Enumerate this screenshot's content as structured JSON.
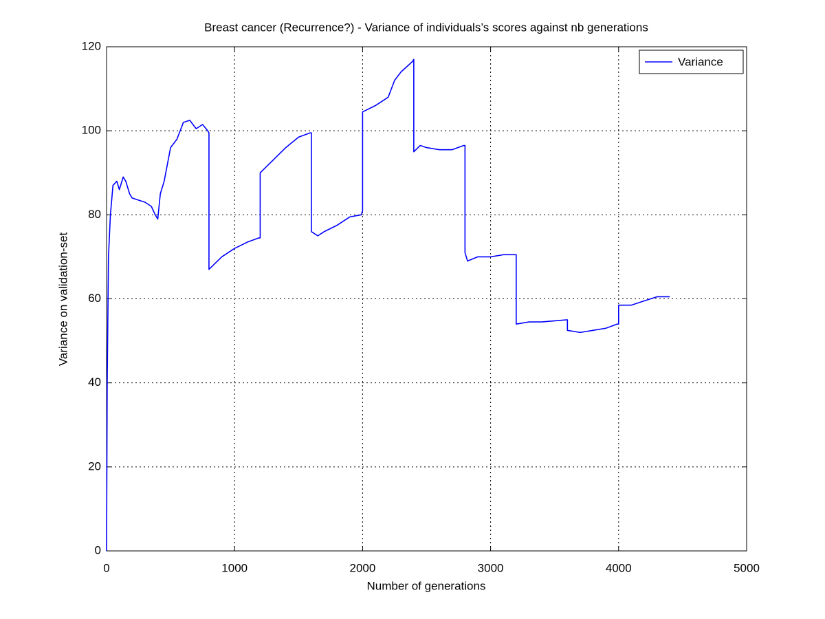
{
  "chart_data": {
    "type": "line",
    "title": "Breast cancer (Recurrence?) - Variance of individuals’s scores against nb generations",
    "xlabel": "Number of generations",
    "ylabel": "Variance on validation-set",
    "xlim": [
      0,
      5000
    ],
    "xticks": [
      0,
      1000,
      2000,
      3000,
      4000,
      5000
    ],
    "ylim": [
      0,
      120
    ],
    "yticks": [
      0,
      20,
      40,
      60,
      80,
      100,
      120
    ],
    "grid": true,
    "legend": "northeast",
    "x": [
      0,
      5,
      15,
      30,
      50,
      80,
      100,
      130,
      150,
      180,
      200,
      250,
      300,
      350,
      380,
      400,
      420,
      450,
      500,
      550,
      600,
      650,
      700,
      750,
      790,
      800,
      800,
      850,
      900,
      1000,
      1100,
      1190,
      1200,
      1200,
      1300,
      1400,
      1500,
      1590,
      1600,
      1600,
      1650,
      1700,
      1800,
      1900,
      1990,
      2000,
      2000,
      2100,
      2200,
      2250,
      2300,
      2390,
      2400,
      2400,
      2450,
      2500,
      2600,
      2700,
      2790,
      2800,
      2800,
      2820,
      2900,
      3000,
      3100,
      3190,
      3200,
      3200,
      3300,
      3400,
      3590,
      3600,
      3600,
      3700,
      3800,
      3900,
      3990,
      4000,
      4000,
      4100,
      4200,
      4300,
      4400
    ],
    "series": [
      {
        "name": "Variance",
        "color": "#0000ff",
        "values": [
          0,
          40,
          70,
          80,
          87,
          88,
          86,
          89,
          88,
          85,
          84,
          83.5,
          83,
          82,
          80,
          79,
          85,
          88,
          96,
          98,
          102,
          102.5,
          100.5,
          101.5,
          100,
          99.5,
          67,
          68.5,
          70,
          72,
          73.5,
          74.5,
          74.5,
          90,
          93,
          96,
          98.5,
          99.5,
          99.5,
          76,
          75,
          76,
          77.5,
          79.5,
          80,
          81,
          104.5,
          106,
          108,
          112,
          114,
          116.5,
          117,
          95,
          96.5,
          96,
          95.5,
          95.5,
          96.5,
          96.5,
          71,
          69,
          70,
          70,
          70.5,
          70.5,
          70.5,
          54,
          54.5,
          54.5,
          55,
          55,
          52.5,
          52,
          52.5,
          53,
          54,
          54,
          58.5,
          58.5,
          59.5,
          60.5,
          60.5
        ]
      }
    ]
  }
}
